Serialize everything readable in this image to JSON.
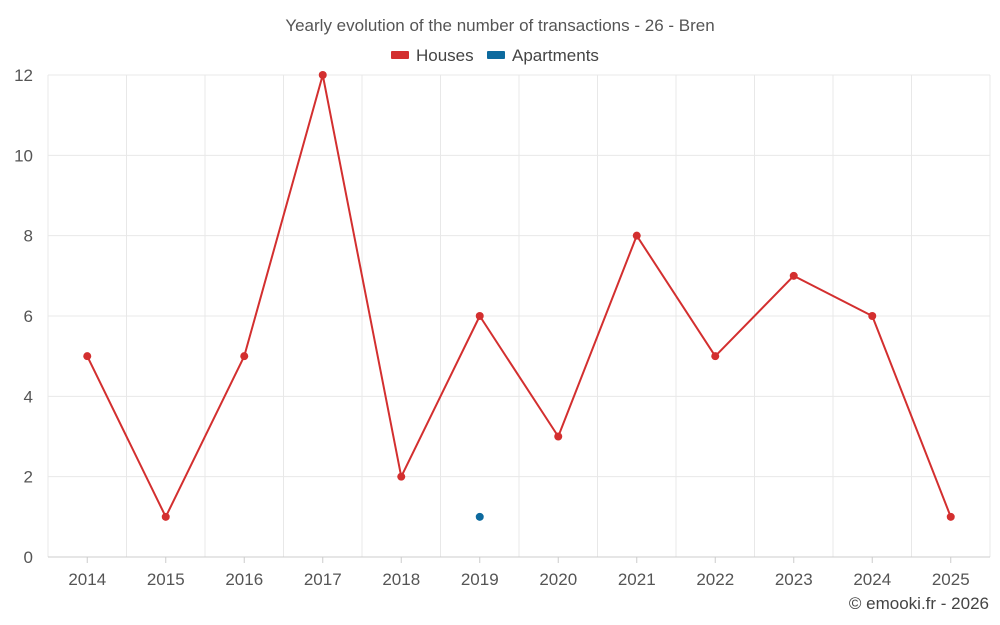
{
  "chart_data": {
    "type": "line",
    "title": "Yearly evolution of the number of transactions - 26 - Bren",
    "categories": [
      "2014",
      "2015",
      "2016",
      "2017",
      "2018",
      "2019",
      "2020",
      "2021",
      "2022",
      "2023",
      "2024",
      "2025"
    ],
    "series": [
      {
        "name": "Houses",
        "color": "#d32f2f",
        "values": [
          5,
          1,
          5,
          12,
          2,
          6,
          3,
          8,
          5,
          7,
          6,
          1
        ]
      },
      {
        "name": "Apartments",
        "color": "#0d6a9e",
        "values": [
          null,
          null,
          null,
          null,
          null,
          1,
          null,
          null,
          null,
          null,
          null,
          null
        ]
      }
    ],
    "ylim": [
      0,
      12
    ],
    "yticks": [
      0,
      2,
      4,
      6,
      8,
      10,
      12
    ],
    "grid": true,
    "legend": "top-center",
    "xlabel": "",
    "ylabel": ""
  },
  "credit": "© emooki.fr - 2026"
}
